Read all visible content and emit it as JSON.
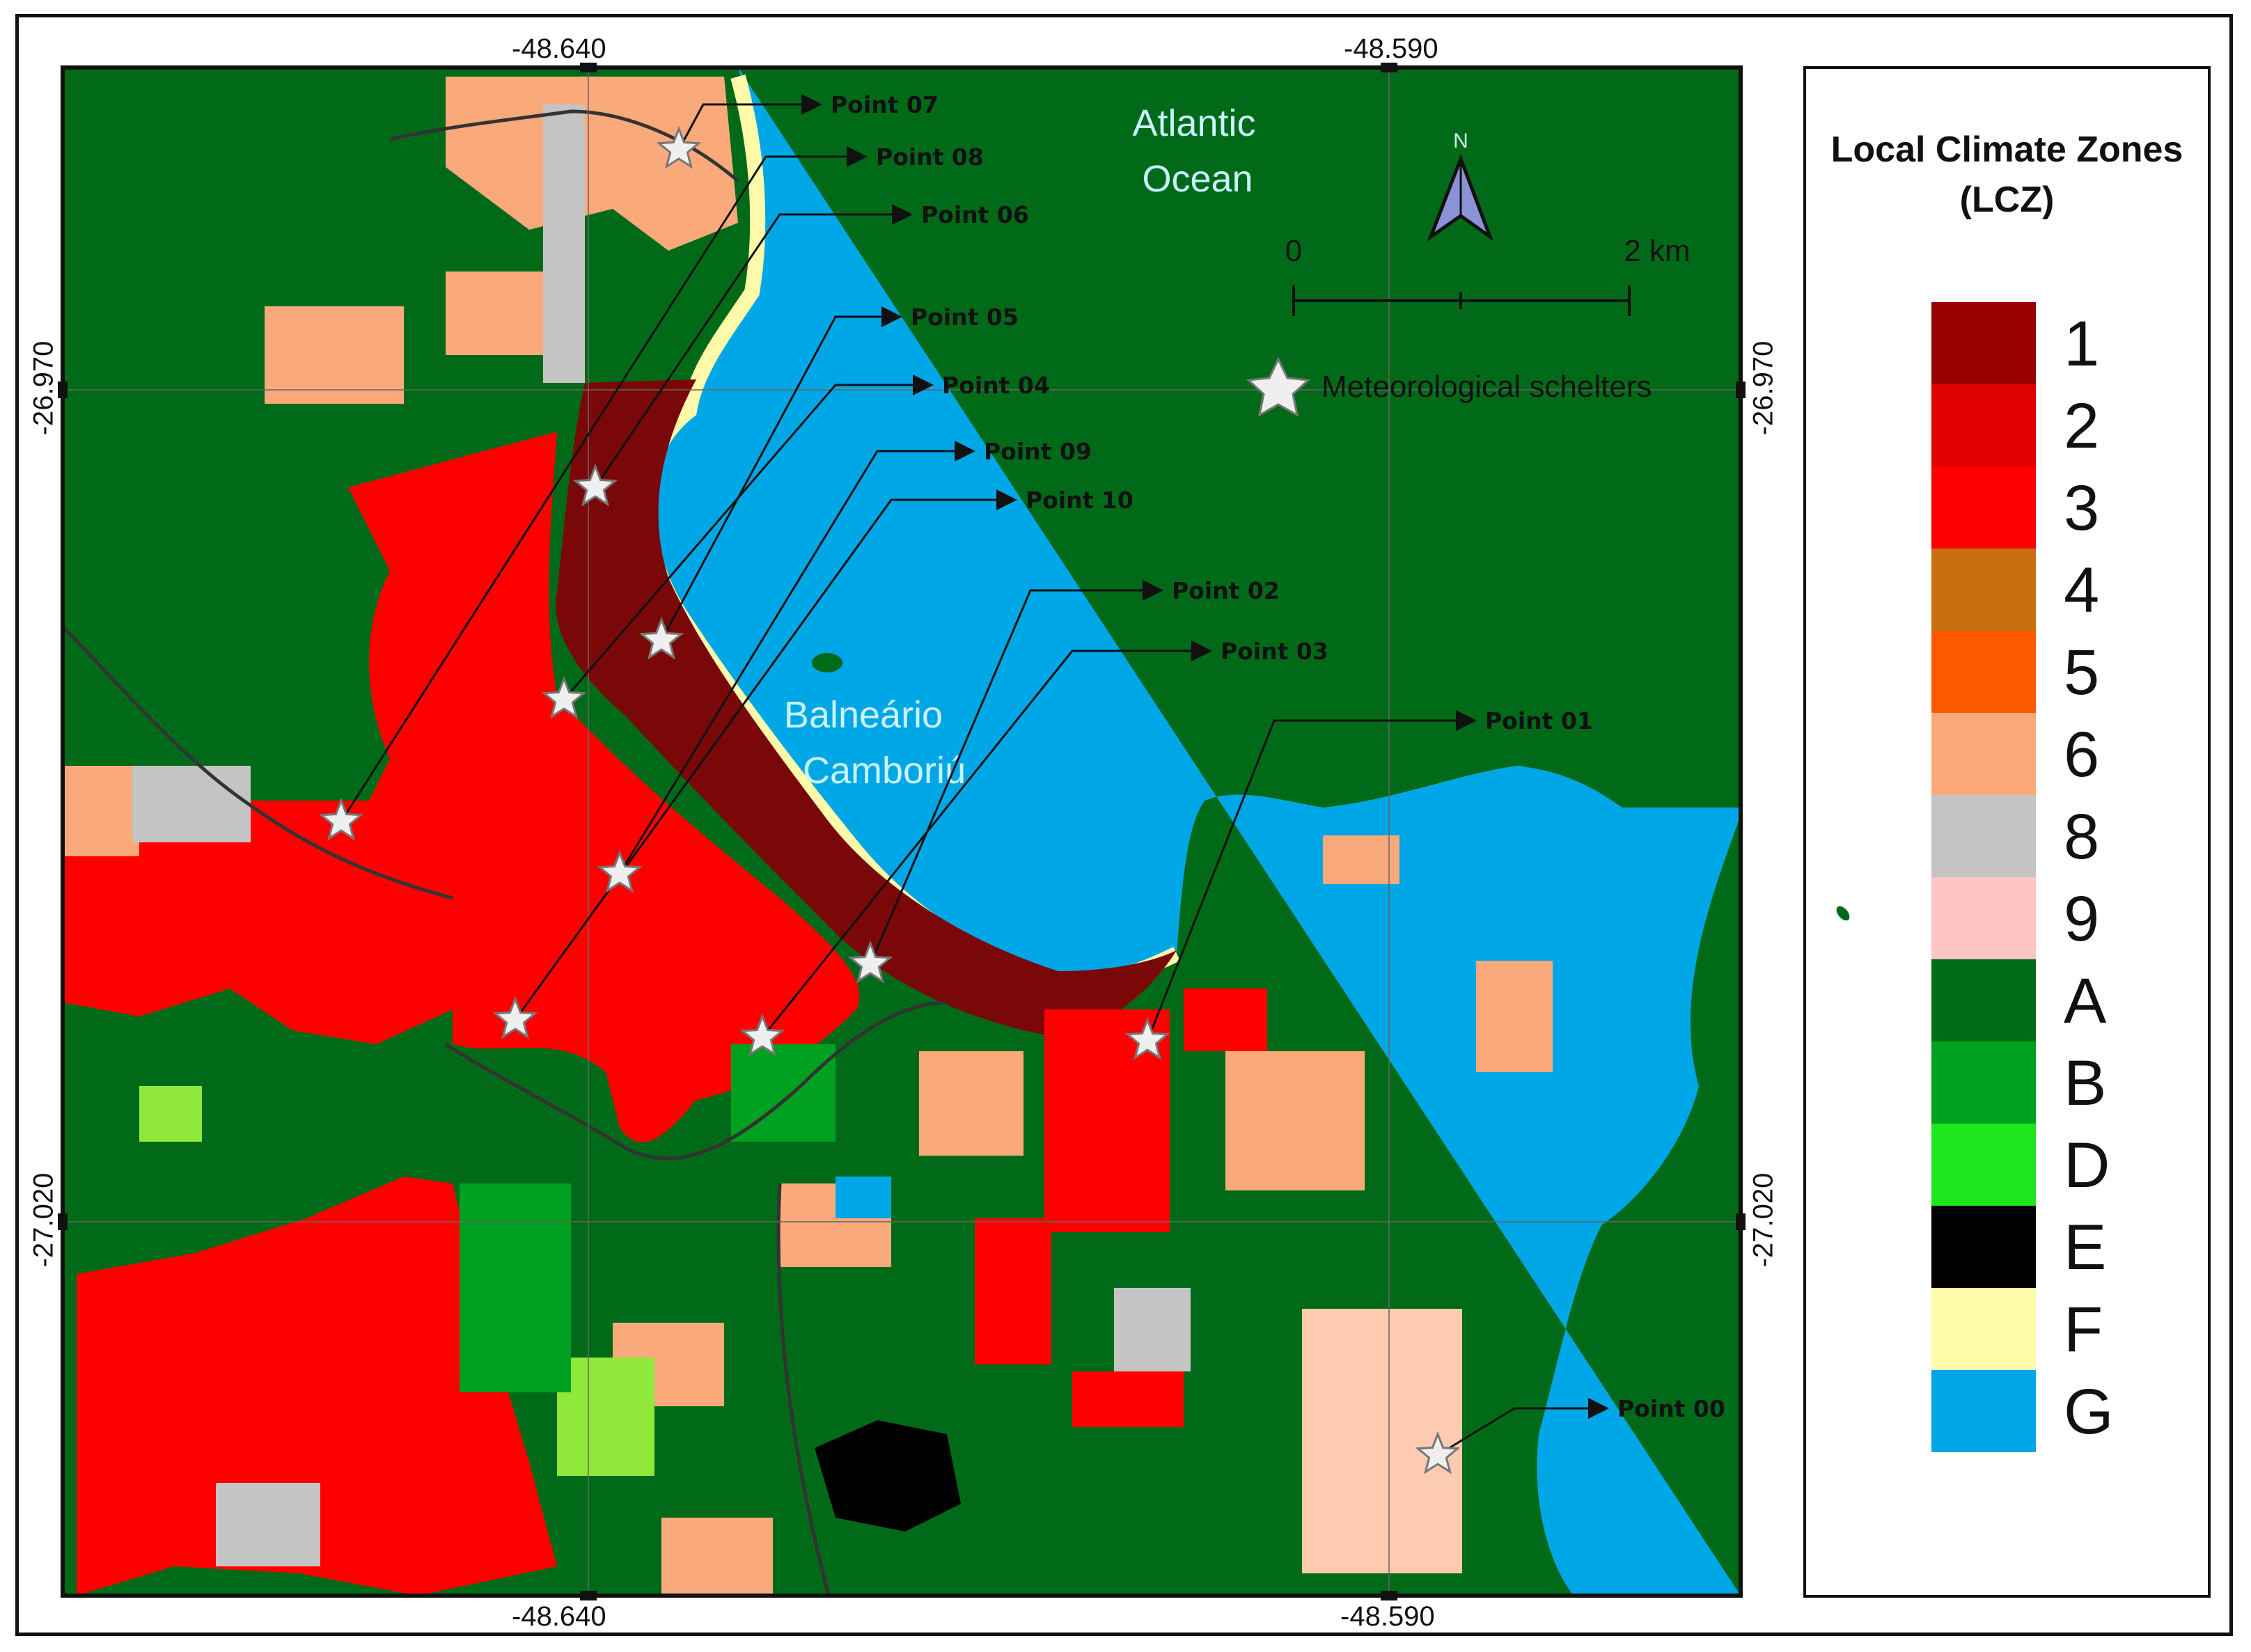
{
  "coordinates": {
    "top_lon_left": "-48.640",
    "top_lon_right": "-48.590",
    "bottom_lon_left": "-48.640",
    "bottom_lon_right": "-48.590",
    "left_lat_top": "-26.970",
    "left_lat_bottom": "-27.020",
    "right_lat_top": "-26.970",
    "right_lat_bottom": "-27.020"
  },
  "map": {
    "ocean_label_line1": "Atlantic",
    "ocean_label_line2": "Ocean",
    "city_label_line1": "Balneário",
    "city_label_line2": "Camboriú",
    "north_label": "N",
    "scale_start": "0",
    "scale_end": "2 km",
    "station_legend": "Meteorological schelters",
    "colors": {
      "ocean": "#00a7e6",
      "label": "#c9f3ff"
    }
  },
  "points": [
    {
      "label": "Point 07"
    },
    {
      "label": "Point 08"
    },
    {
      "label": "Point 06"
    },
    {
      "label": "Point 05"
    },
    {
      "label": "Point 04"
    },
    {
      "label": "Point 09"
    },
    {
      "label": "Point 10"
    },
    {
      "label": "Point 02"
    },
    {
      "label": "Point 03"
    },
    {
      "label": "Point 01"
    },
    {
      "label": "Point 00"
    }
  ],
  "legend": {
    "title_line1": "Local Climate Zones",
    "title_line2": "(LCZ)",
    "classes": [
      {
        "label": "1",
        "color": "#990000"
      },
      {
        "label": "2",
        "color": "#e00000"
      },
      {
        "label": "3",
        "color": "#ff0000"
      },
      {
        "label": "4",
        "color": "#c86e10"
      },
      {
        "label": "5",
        "color": "#ff5a00"
      },
      {
        "label": "6",
        "color": "#f9a97a"
      },
      {
        "label": "8",
        "color": "#c4c4c4"
      },
      {
        "label": "9",
        "color": "#ffc4c4"
      },
      {
        "label": "A",
        "color": "#006a18"
      },
      {
        "label": "B",
        "color": "#00a020"
      },
      {
        "label": "D",
        "color": "#1ee61e"
      },
      {
        "label": "E",
        "color": "#000000"
      },
      {
        "label": "F",
        "color": "#fffaaa"
      },
      {
        "label": "G",
        "color": "#00a7e6"
      }
    ]
  }
}
